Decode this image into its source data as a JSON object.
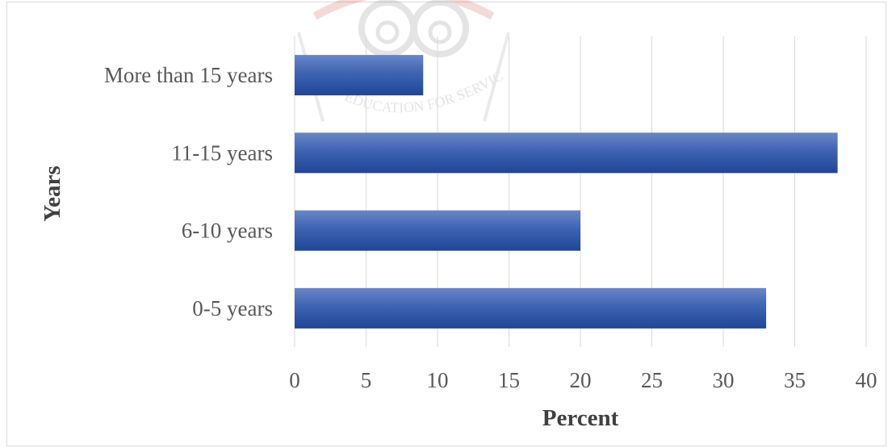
{
  "chart_data": {
    "type": "bar",
    "orientation": "horizontal",
    "categories": [
      "0-5 years",
      "6-10 years",
      "11-15 years",
      "More than 15 years"
    ],
    "values": [
      33,
      20,
      38,
      9
    ],
    "xlabel": "Percent",
    "ylabel": "Years",
    "xlim": [
      0,
      40
    ],
    "xticks": [
      "0",
      "5",
      "10",
      "15",
      "20",
      "25",
      "30",
      "35",
      "40"
    ],
    "grid": "vertical",
    "bar_color": "#2f55a4"
  },
  "watermark": {
    "text": "EDUCATION FOR SERVICE"
  }
}
